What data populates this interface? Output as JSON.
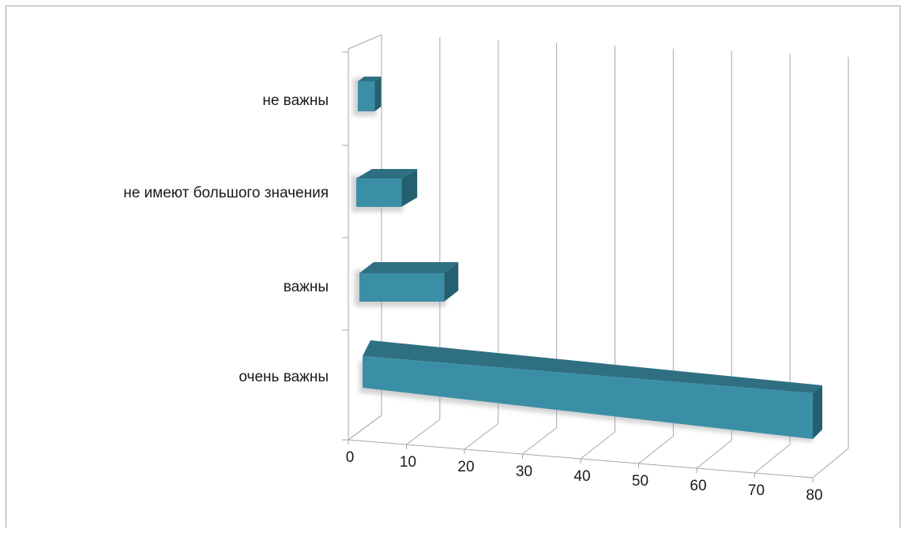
{
  "chart_data": {
    "type": "bar",
    "orientation": "horizontal",
    "style": "3d-clustered",
    "categories": [
      "не важны",
      "не имеют большого значения",
      "важны",
      "очень важны"
    ],
    "values": [
      3,
      8,
      15,
      79
    ],
    "xlim": [
      0,
      80
    ],
    "x_ticks": [
      "0",
      "10",
      "20",
      "30",
      "40",
      "50",
      "60",
      "70",
      "80"
    ],
    "grid": true,
    "colors": {
      "bar_front": "#3a8fa6",
      "bar_top": "#2f6f82",
      "bar_side": "#24606f",
      "grid": "#a6a6a6"
    }
  }
}
